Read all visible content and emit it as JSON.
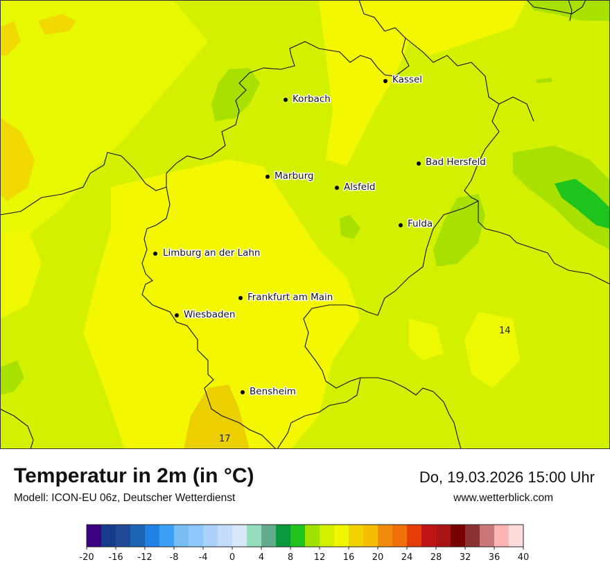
{
  "header": {
    "title": "Temperatur in 2m (in °C)",
    "model": "Modell: ICON-EU 06z, Deutscher Wetterdienst",
    "datetime": "Do, 19.03.2026 15:00 Uhr",
    "website": "www.wetterblick.com"
  },
  "map": {
    "cities": [
      {
        "name": "Kassel"
      },
      {
        "name": "Korbach"
      },
      {
        "name": "Bad Hersfeld"
      },
      {
        "name": "Marburg"
      },
      {
        "name": "Alsfeld"
      },
      {
        "name": "Fulda"
      },
      {
        "name": "Limburg an der Lahn"
      },
      {
        "name": "Frankfurt am Main"
      },
      {
        "name": "Wiesbaden"
      },
      {
        "name": "Bensheim"
      }
    ],
    "isoline_labels": [
      "14",
      "17"
    ],
    "temperature_colors": {
      "11": "#a8e000",
      "12": "#c2eb00",
      "13": "#d6f000",
      "14": "#ecfa00",
      "15": "#f3f500",
      "16": "#f0d800",
      "17": "#ebcf00"
    }
  },
  "legend": {
    "colors": [
      "#3c0082",
      "#183c8c",
      "#1e4a96",
      "#1e64b4",
      "#2082e6",
      "#3ca0f5",
      "#78bef5",
      "#8cc8fa",
      "#aad2fa",
      "#c3dcfa",
      "#d7e8fa",
      "#96dcbe",
      "#64aa8c",
      "#0a9a3c",
      "#1ec31e",
      "#a0e100",
      "#d2f000",
      "#f0f500",
      "#f0d200",
      "#f5be00",
      "#f08c0a",
      "#f0700a",
      "#e63c0a",
      "#be1414",
      "#aa1414",
      "#780000",
      "#8c3232",
      "#c87878",
      "#ffb4b4",
      "#ffdcdc"
    ],
    "ticks": [
      "-20",
      "-16",
      "-12",
      "-8",
      "-4",
      "0",
      "4",
      "8",
      "12",
      "16",
      "20",
      "24",
      "28",
      "32",
      "36",
      "40"
    ]
  }
}
